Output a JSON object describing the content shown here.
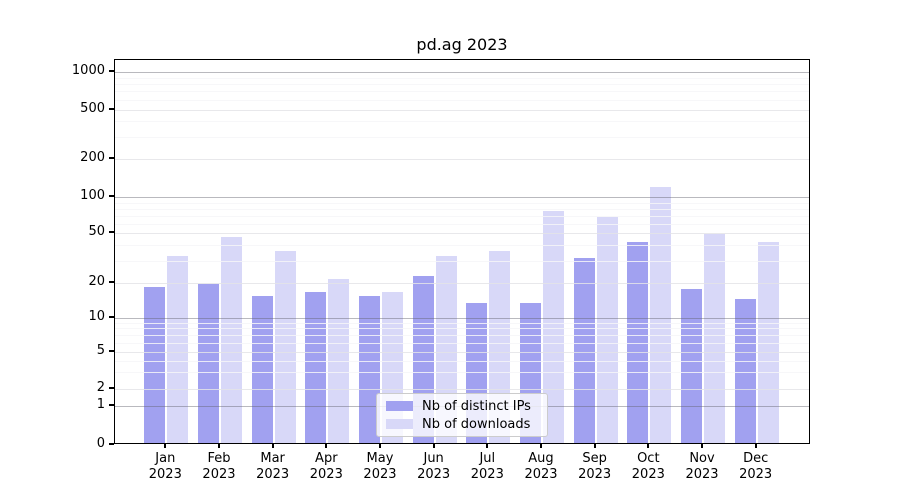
{
  "title": "pd.ag 2023",
  "chart_data": {
    "type": "bar",
    "title": "pd.ag 2023",
    "categories": [
      "Jan",
      "Feb",
      "Mar",
      "Apr",
      "May",
      "Jun",
      "Jul",
      "Aug",
      "Sep",
      "Oct",
      "Nov",
      "Dec"
    ],
    "category_year": "2023",
    "series": [
      {
        "name": "Nb of distinct IPs",
        "color": "#a1a1f0",
        "values": [
          18,
          19,
          15,
          16,
          15,
          22,
          13,
          13,
          31,
          41,
          17,
          14
        ]
      },
      {
        "name": "Nb of downloads",
        "color": "#d8d8f8",
        "values": [
          32,
          45,
          35,
          21,
          16,
          32,
          35,
          75,
          66,
          118,
          48,
          41
        ]
      }
    ],
    "xlabel": "",
    "ylabel": "",
    "yscale": "symlog",
    "ylim": [
      0,
      1200
    ],
    "yticks": [
      0,
      1,
      2,
      5,
      10,
      20,
      50,
      100,
      200,
      500,
      1000
    ],
    "major_gridlines": [
      1,
      10,
      100,
      1000
    ],
    "minor_gridlines": [
      3,
      4,
      6,
      7,
      8,
      9,
      30,
      40,
      60,
      70,
      80,
      90,
      300,
      400,
      600,
      700,
      800,
      900
    ],
    "grid": true,
    "legend_position": "lower center"
  }
}
